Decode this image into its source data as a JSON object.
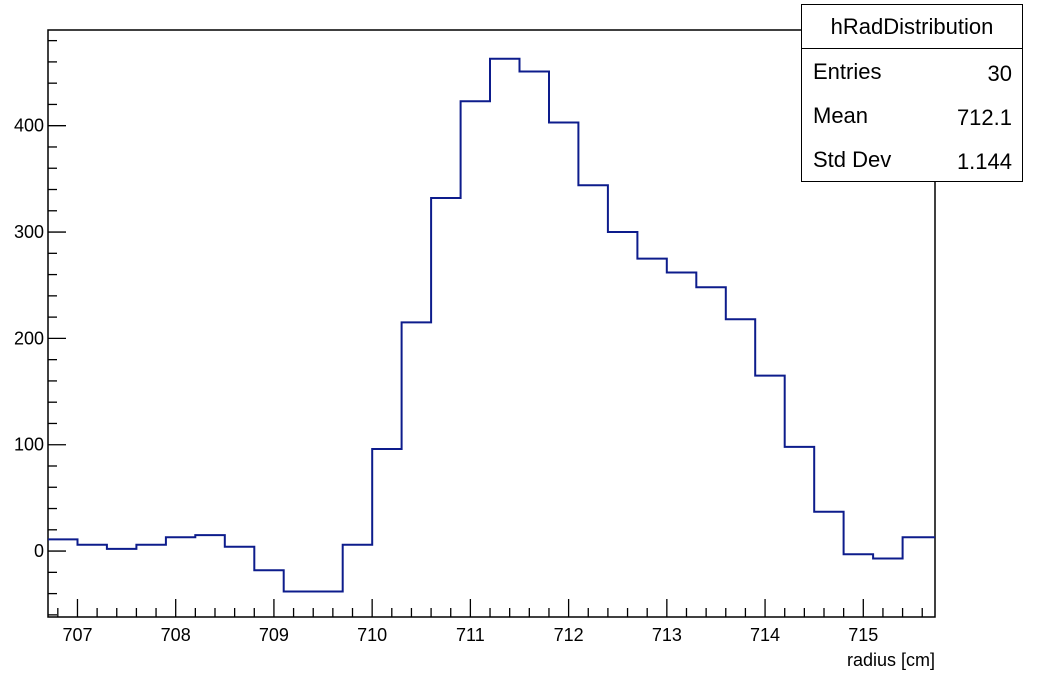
{
  "chart_data": {
    "type": "histogram",
    "xlabel": "radius [cm]",
    "ylabel": "",
    "xlim": [
      706.7,
      715.73
    ],
    "ylim": [
      -62,
      490
    ],
    "x_ticks": [
      707,
      708,
      709,
      710,
      711,
      712,
      713,
      714,
      715
    ],
    "y_ticks": [
      0,
      100,
      200,
      300,
      400
    ],
    "bin_edges": [
      706.7,
      707.0,
      707.3,
      707.6,
      707.9,
      708.2,
      708.5,
      708.8,
      709.1,
      709.4,
      709.7,
      710.0,
      710.3,
      710.6,
      710.9,
      711.2,
      711.5,
      711.8,
      712.1,
      712.4,
      712.7,
      713.0,
      713.3,
      713.6,
      713.9,
      714.2,
      714.5,
      714.8,
      715.1,
      715.4,
      715.73
    ],
    "values": [
      11,
      6,
      2,
      6,
      13,
      15,
      4,
      -18,
      -38,
      -38,
      6,
      96,
      215,
      332,
      423,
      463,
      451,
      403,
      344,
      300,
      275,
      262,
      248,
      218,
      165,
      98,
      37,
      -3,
      -7,
      13
    ],
    "line_color": "#0d1c8c",
    "stats_box": {
      "title": "hRadDistribution",
      "rows": [
        {
          "label": "Entries",
          "value": "30"
        },
        {
          "label": "Mean",
          "value": "712.1"
        },
        {
          "label": "Std Dev",
          "value": "1.144"
        }
      ]
    },
    "grid": false,
    "legend": "top-right"
  }
}
